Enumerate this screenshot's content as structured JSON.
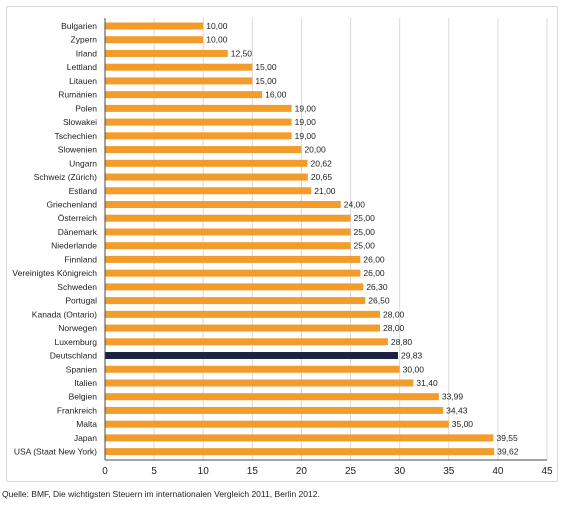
{
  "chart_data": {
    "type": "bar",
    "orientation": "horizontal",
    "categories": [
      "Bulgarien",
      "Zypern",
      "Irland",
      "Lettland",
      "Litauen",
      "Rumänien",
      "Polen",
      "Slowakei",
      "Tschechien",
      "Slowenien",
      "Ungarn",
      "Schweiz (Zürich)",
      "Estland",
      "Griechenland",
      "Österreich",
      "Dänemark",
      "Niederlande",
      "Finnland",
      "Vereinigtes Königreich",
      "Schweden",
      "Portugal",
      "Kanada (Ontario)",
      "Norwegen",
      "Luxemburg",
      "Deutschland",
      "Spanien",
      "Italien",
      "Belgien",
      "Frankreich",
      "Malta",
      "Japan",
      "USA (Staat New York)"
    ],
    "values": [
      10.0,
      10.0,
      12.5,
      15.0,
      15.0,
      16.0,
      19.0,
      19.0,
      19.0,
      20.0,
      20.62,
      20.65,
      21.0,
      24.0,
      25.0,
      25.0,
      25.0,
      26.0,
      26.0,
      26.3,
      26.5,
      28.0,
      28.0,
      28.8,
      29.83,
      30.0,
      31.4,
      33.99,
      34.43,
      35.0,
      39.55,
      39.62
    ],
    "value_labels": [
      "10,00",
      "10,00",
      "12,50",
      "15,00",
      "15,00",
      "16,00",
      "19,00",
      "19,00",
      "19,00",
      "20,00",
      "20,62",
      "20,65",
      "21,00",
      "24,00",
      "25,00",
      "25,00",
      "25,00",
      "26,00",
      "26,00",
      "26,30",
      "26,50",
      "28,00",
      "28,00",
      "28,80",
      "29,83",
      "30,00",
      "31,40",
      "33,99",
      "34,43",
      "35,00",
      "39,55",
      "39,62"
    ],
    "highlight_category": "Deutschland",
    "xlim": [
      0,
      45
    ],
    "xticks": [
      0,
      5,
      10,
      15,
      20,
      25,
      30,
      35,
      40,
      45
    ],
    "grid": "vertical",
    "legend": "none",
    "title": "",
    "xlabel": "",
    "ylabel": ""
  },
  "colors": {
    "bar": "#f39c2b",
    "highlight": "#1b2340",
    "grid": "#d9d9d9",
    "axis": "#4a4a4a"
  },
  "source": "Quelle: BMF, Die wichtigsten Steuern im internationalen Vergleich 2011, Berlin 2012."
}
